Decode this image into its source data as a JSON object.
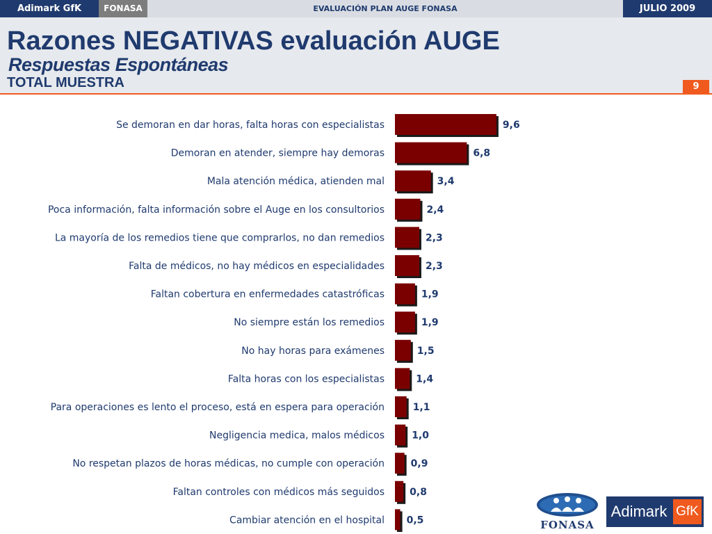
{
  "topbar": {
    "brand": "Adimark GfK",
    "client": "FONASA",
    "title": "EVALUACIÓN PLAN AUGE FONASA",
    "date": "JULIO 2009"
  },
  "header": {
    "title": "Razones NEGATIVAS evaluación AUGE",
    "subtitle": "Respuestas Espontáneas",
    "subtitle2": "TOTAL MUESTRA",
    "page_number": "9"
  },
  "logos": {
    "fonasa": "FONASA",
    "adimark_name": "Adimark",
    "adimark_gfk": "GfK"
  },
  "colors": {
    "bar": "#7a0000",
    "bar_shadow": "#1a1a1a",
    "accent": "#f05a1e",
    "navy": "#1f3a6e"
  },
  "chart_data": {
    "type": "bar",
    "orientation": "horizontal",
    "categories": [
      "Se demoran en dar horas, falta horas con especialistas",
      "Demoran en atender, siempre hay demoras",
      "Mala atención médica, atienden mal",
      "Poca información, falta información sobre el Auge en los consultorios",
      "La mayoría de los remedios tiene que comprarlos, no dan remedios",
      "Falta de médicos, no hay médicos en especialidades",
      "Faltan cobertura en enfermedades catastróficas",
      "No siempre están los remedios",
      "No hay horas para exámenes",
      "Falta horas con los especialistas",
      "Para operaciones es lento el proceso, está en espera para operación",
      "Negligencia medica, malos médicos",
      "No respetan plazos de horas médicas, no cumple con operación",
      "Faltan controles con médicos más seguidos",
      "Cambiar atención en el hospital"
    ],
    "values": [
      9.6,
      6.8,
      3.4,
      2.4,
      2.3,
      2.3,
      1.9,
      1.9,
      1.5,
      1.4,
      1.1,
      1.0,
      0.9,
      0.8,
      0.5
    ],
    "value_labels": [
      "9,6",
      "6,8",
      "3,4",
      "2,4",
      "2,3",
      "2,3",
      "1,9",
      "1,9",
      "1,5",
      "1,4",
      "1,1",
      "1,0",
      "0,9",
      "0,8",
      "0,5"
    ],
    "grid": false,
    "legend": "none"
  }
}
